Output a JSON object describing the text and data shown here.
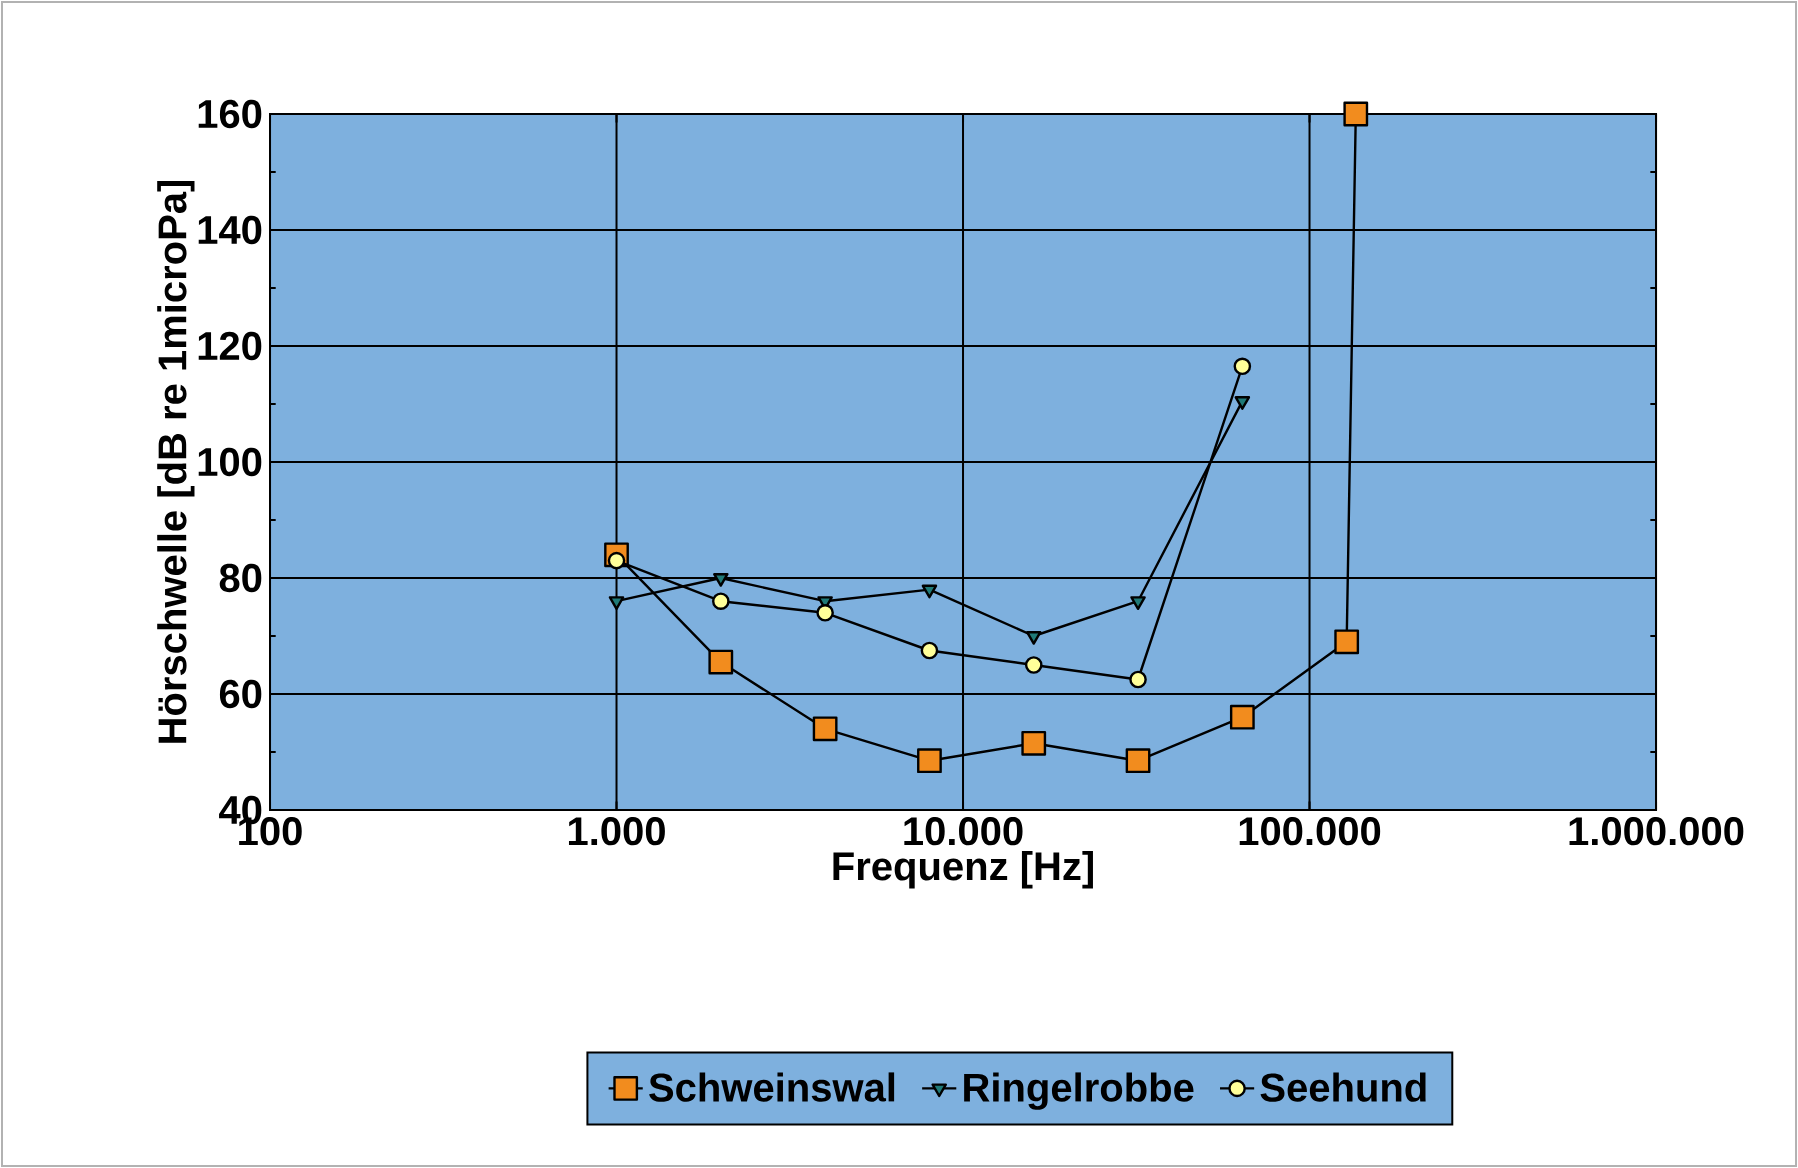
{
  "chart_data": {
    "type": "line",
    "xlabel": "Frequenz [Hz]",
    "ylabel": "Hörschwelle [dB re 1microPa]",
    "log": "x",
    "xlim": [
      100,
      1000000
    ],
    "ylim": [
      40,
      160
    ],
    "xticks": [
      {
        "value": 100,
        "label": "100"
      },
      {
        "value": 1000,
        "label": "1.000"
      },
      {
        "value": 10000,
        "label": "10.000"
      },
      {
        "value": 100000,
        "label": "100.000"
      },
      {
        "value": 1000000,
        "label": "1.000.000"
      }
    ],
    "yticks": [
      40,
      60,
      80,
      100,
      120,
      140,
      160
    ],
    "grid": true,
    "legend": "bottom",
    "series": [
      {
        "name": "Schweinswal",
        "color": "#f28c1e",
        "marker": "square",
        "x": [
          1000,
          2000,
          4000,
          8000,
          16000,
          32000,
          64000,
          128000,
          136000
        ],
        "values": [
          84,
          65.5,
          54,
          48.5,
          51.5,
          48.5,
          56,
          69,
          160
        ]
      },
      {
        "name": "Ringelrobbe",
        "color": "#1f7a78",
        "marker": "triangle",
        "x": [
          1000,
          2000,
          4000,
          8000,
          16000,
          32000,
          64000
        ],
        "values": [
          76,
          80,
          76,
          78,
          70,
          76,
          110.5
        ]
      },
      {
        "name": "Seehund",
        "color": "#ffff99",
        "marker": "circle",
        "x": [
          1000,
          2000,
          4000,
          8000,
          16000,
          32000,
          64000
        ],
        "values": [
          83,
          76,
          74,
          67.5,
          65,
          62.5,
          116.5
        ]
      }
    ]
  }
}
